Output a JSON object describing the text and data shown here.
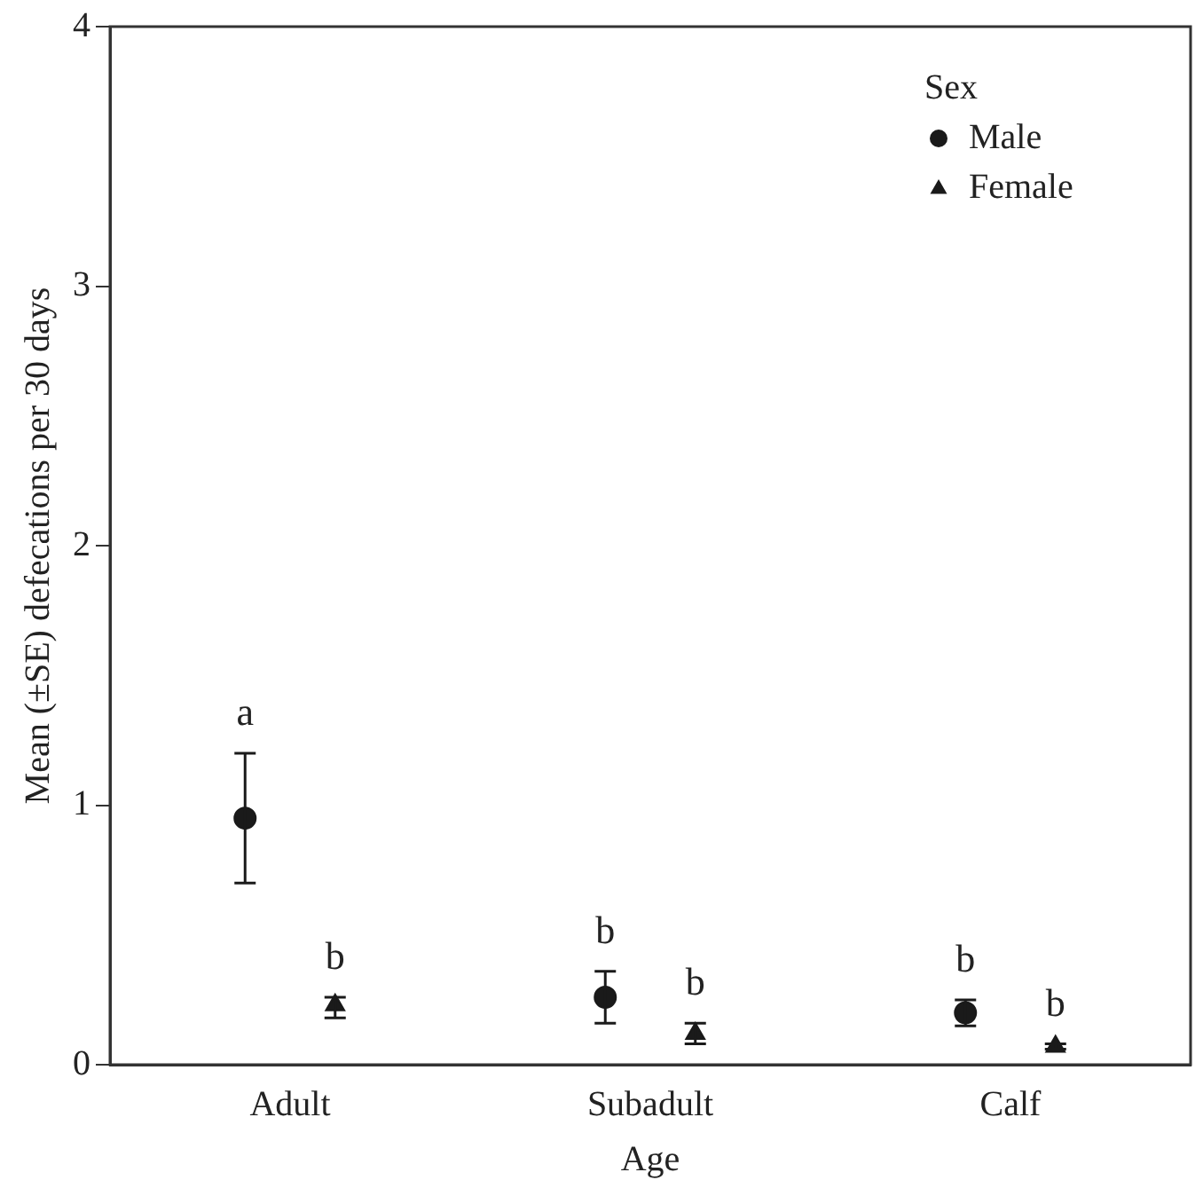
{
  "chart_data": {
    "type": "scatter",
    "xlabel": "Age",
    "ylabel": "Mean (±SE) defecations per 30 days",
    "legend_title": "Sex",
    "categories": [
      "Adult",
      "Subadult",
      "Calf"
    ],
    "series": [
      {
        "name": "Male",
        "color": "#1a1a1a",
        "marker": "circle",
        "values": [
          0.95,
          0.26,
          0.2
        ],
        "errors": [
          [
            0.7,
            1.2
          ],
          [
            0.16,
            0.36
          ],
          [
            0.15,
            0.25
          ]
        ],
        "value_labels": [
          "a",
          "b",
          "b"
        ]
      },
      {
        "name": "Female",
        "color": "#1a1a1a",
        "marker": "triangle",
        "values": [
          0.23,
          0.12,
          0.07
        ],
        "errors": [
          [
            0.18,
            0.26
          ],
          [
            0.08,
            0.16
          ],
          [
            0.06,
            0.08
          ]
        ],
        "value_labels": [
          "b",
          "b",
          "b"
        ]
      }
    ],
    "ylim": [
      0,
      4
    ],
    "yticks": [
      0,
      1,
      2,
      3,
      4
    ],
    "grid": false,
    "legend": "top right"
  }
}
